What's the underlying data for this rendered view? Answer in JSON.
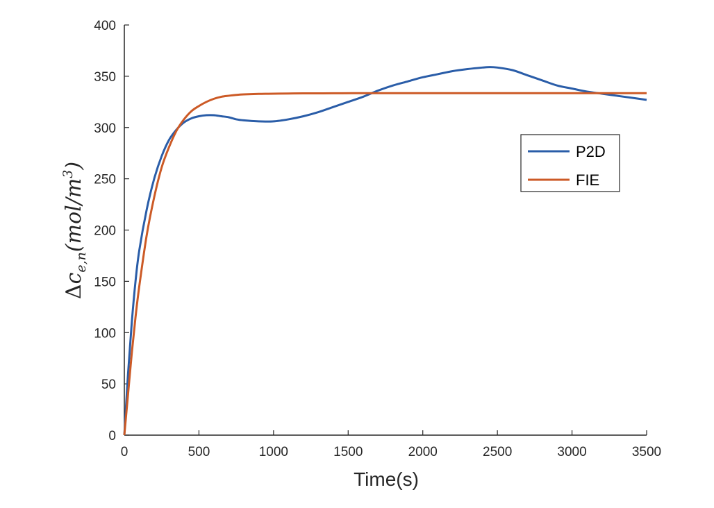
{
  "chart_data": {
    "type": "line",
    "title": "",
    "xlabel": "Time(s)",
    "ylabel": "Δc_{e,n}(mol/m^3)",
    "ylabel_parts": {
      "delta": "Δ",
      "c": "c",
      "sub": "e,n",
      "unit": "(mol/m",
      "sup": "3",
      "close": ")"
    },
    "xlim": [
      0,
      3500
    ],
    "ylim": [
      0,
      400
    ],
    "xticks": [
      0,
      500,
      1000,
      1500,
      2000,
      2500,
      3000,
      3500
    ],
    "yticks": [
      0,
      50,
      100,
      150,
      200,
      250,
      300,
      350,
      400
    ],
    "xtick_labels": [
      "0",
      "500",
      "1000",
      "1500",
      "2000",
      "2500",
      "3000",
      "3500"
    ],
    "ytick_labels": [
      "0",
      "50",
      "100",
      "150",
      "200",
      "250",
      "300",
      "350",
      "400"
    ],
    "grid": false,
    "legend": "right-center",
    "series": [
      {
        "name": "P2D",
        "color": "#2a5da8",
        "x": [
          0,
          25,
          50,
          75,
          100,
          150,
          200,
          250,
          300,
          350,
          400,
          450,
          500,
          550,
          600,
          650,
          700,
          750,
          800,
          900,
          1000,
          1100,
          1200,
          1300,
          1400,
          1500,
          1600,
          1700,
          1800,
          1900,
          2000,
          2100,
          2200,
          2300,
          2400,
          2450,
          2500,
          2600,
          2700,
          2800,
          2900,
          3000,
          3100,
          3200,
          3300,
          3400,
          3500
        ],
        "y": [
          0,
          60,
          110,
          150,
          180,
          220,
          250,
          272,
          288,
          298,
          305,
          309,
          311,
          312,
          312,
          311,
          310,
          308,
          307,
          306,
          306,
          308,
          311,
          315,
          320,
          325,
          330,
          336,
          341,
          345,
          349,
          352,
          355,
          357,
          358.5,
          359,
          358.5,
          356,
          351,
          346,
          341,
          338,
          335,
          333,
          331,
          329,
          327
        ]
      },
      {
        "name": "FIE",
        "color": "#cc5a26",
        "x": [
          0,
          25,
          50,
          75,
          100,
          150,
          200,
          250,
          300,
          350,
          400,
          450,
          500,
          550,
          600,
          650,
          700,
          750,
          800,
          900,
          1000,
          1100,
          1200,
          1400,
          1600,
          1800,
          2000,
          2500,
          3000,
          3500
        ],
        "y": [
          0,
          40,
          80,
          115,
          145,
          195,
          232,
          261,
          281,
          297,
          308,
          316,
          321,
          325,
          328,
          330,
          331,
          331.8,
          332.3,
          332.8,
          333,
          333.2,
          333.3,
          333.4,
          333.5,
          333.5,
          333.5,
          333.5,
          333.5,
          333.5
        ]
      }
    ]
  }
}
